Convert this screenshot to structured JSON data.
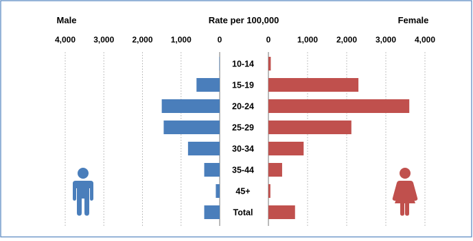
{
  "chart_data": {
    "type": "bar",
    "title": "Rate per 100,000",
    "male_label": "Male",
    "female_label": "Female",
    "categories": [
      "10-14",
      "15-19",
      "20-24",
      "25-29",
      "30-34",
      "35-44",
      "45+",
      "Total"
    ],
    "series": [
      {
        "name": "Male",
        "color": "#4a7ebb",
        "values": [
          10,
          600,
          1500,
          1450,
          820,
          400,
          100,
          400
        ]
      },
      {
        "name": "Female",
        "color": "#c0504d",
        "values": [
          60,
          2300,
          3600,
          2120,
          900,
          350,
          50,
          680
        ]
      }
    ],
    "male_axis": {
      "range": [
        0,
        4000
      ],
      "ticks": [
        4000,
        3000,
        2000,
        1000,
        0
      ],
      "tick_labels": [
        "4,000",
        "3,000",
        "2,000",
        "1,000",
        "0"
      ]
    },
    "female_axis": {
      "range": [
        0,
        4000
      ],
      "ticks": [
        0,
        1000,
        2000,
        3000,
        4000
      ],
      "tick_labels": [
        "0",
        "1,000",
        "2,000",
        "3,000",
        "4,000"
      ]
    },
    "gridlines": "vertical-dotted",
    "icons": {
      "male": "male-figure-icon",
      "female": "female-figure-icon"
    }
  }
}
